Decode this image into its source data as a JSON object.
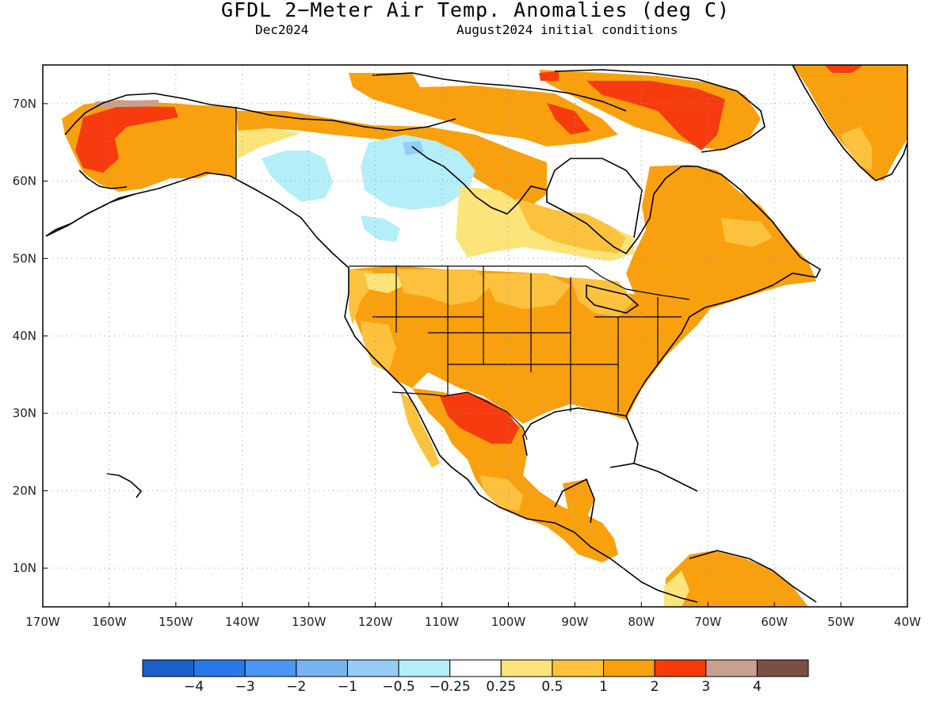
{
  "title": "GFDL 2−Meter Air Temp. Anomalies (deg C)",
  "subtitle_left": "Dec2024",
  "subtitle_right": "August2024 initial conditions",
  "lon_ticks": [
    "170W",
    "160W",
    "150W",
    "140W",
    "130W",
    "120W",
    "110W",
    "100W",
    "90W",
    "80W",
    "70W",
    "60W",
    "50W",
    "40W"
  ],
  "lat_ticks": [
    "70N",
    "60N",
    "50N",
    "40N",
    "30N",
    "20N",
    "10N"
  ],
  "colorbar": {
    "colors": [
      "#1a60c8",
      "#2878e8",
      "#4a96f0",
      "#78b4f2",
      "#96cdf5",
      "#b4eef8",
      "#ffffff",
      "#fde47a",
      "#fcc23e",
      "#f9a00e",
      "#f63c0e",
      "#c8a090",
      "#7a5046"
    ],
    "labels": [
      "−4",
      "−3",
      "−2",
      "−1",
      "−0.5",
      "−0.25",
      "0.25",
      "0.5",
      "1",
      "2",
      "3",
      "4"
    ]
  },
  "map_data": {
    "projection": "lat-lon",
    "lon_range": [
      -170,
      -40
    ],
    "lat_range": [
      5,
      75
    ],
    "units": "deg C",
    "regions": [
      {
        "region": "Alaska (west)",
        "anomaly_range": "2 to 3"
      },
      {
        "region": "Alaska (northwest coast)",
        "anomaly_range": "3 to 4"
      },
      {
        "region": "Yukon / NW Canada",
        "anomaly_range": "-0.5 to 0.25"
      },
      {
        "region": "Canadian Arctic Archipelago",
        "anomaly_range": "1 to 3"
      },
      {
        "region": "Western & central United States",
        "anomaly_range": "1 to 2"
      },
      {
        "region": "Eastern United States",
        "anomaly_range": "1 to 2"
      },
      {
        "region": "Texas / northern Mexico",
        "anomaly_range": "2 to 3"
      },
      {
        "region": "Mexico",
        "anomaly_range": "1 to 2"
      },
      {
        "region": "Quebec / Labrador",
        "anomaly_range": "1 to 2"
      },
      {
        "region": "Greenland (southwest)",
        "anomaly_range": "1 to 2"
      },
      {
        "region": "Northern South America",
        "anomaly_range": "0.5 to 2"
      }
    ]
  }
}
